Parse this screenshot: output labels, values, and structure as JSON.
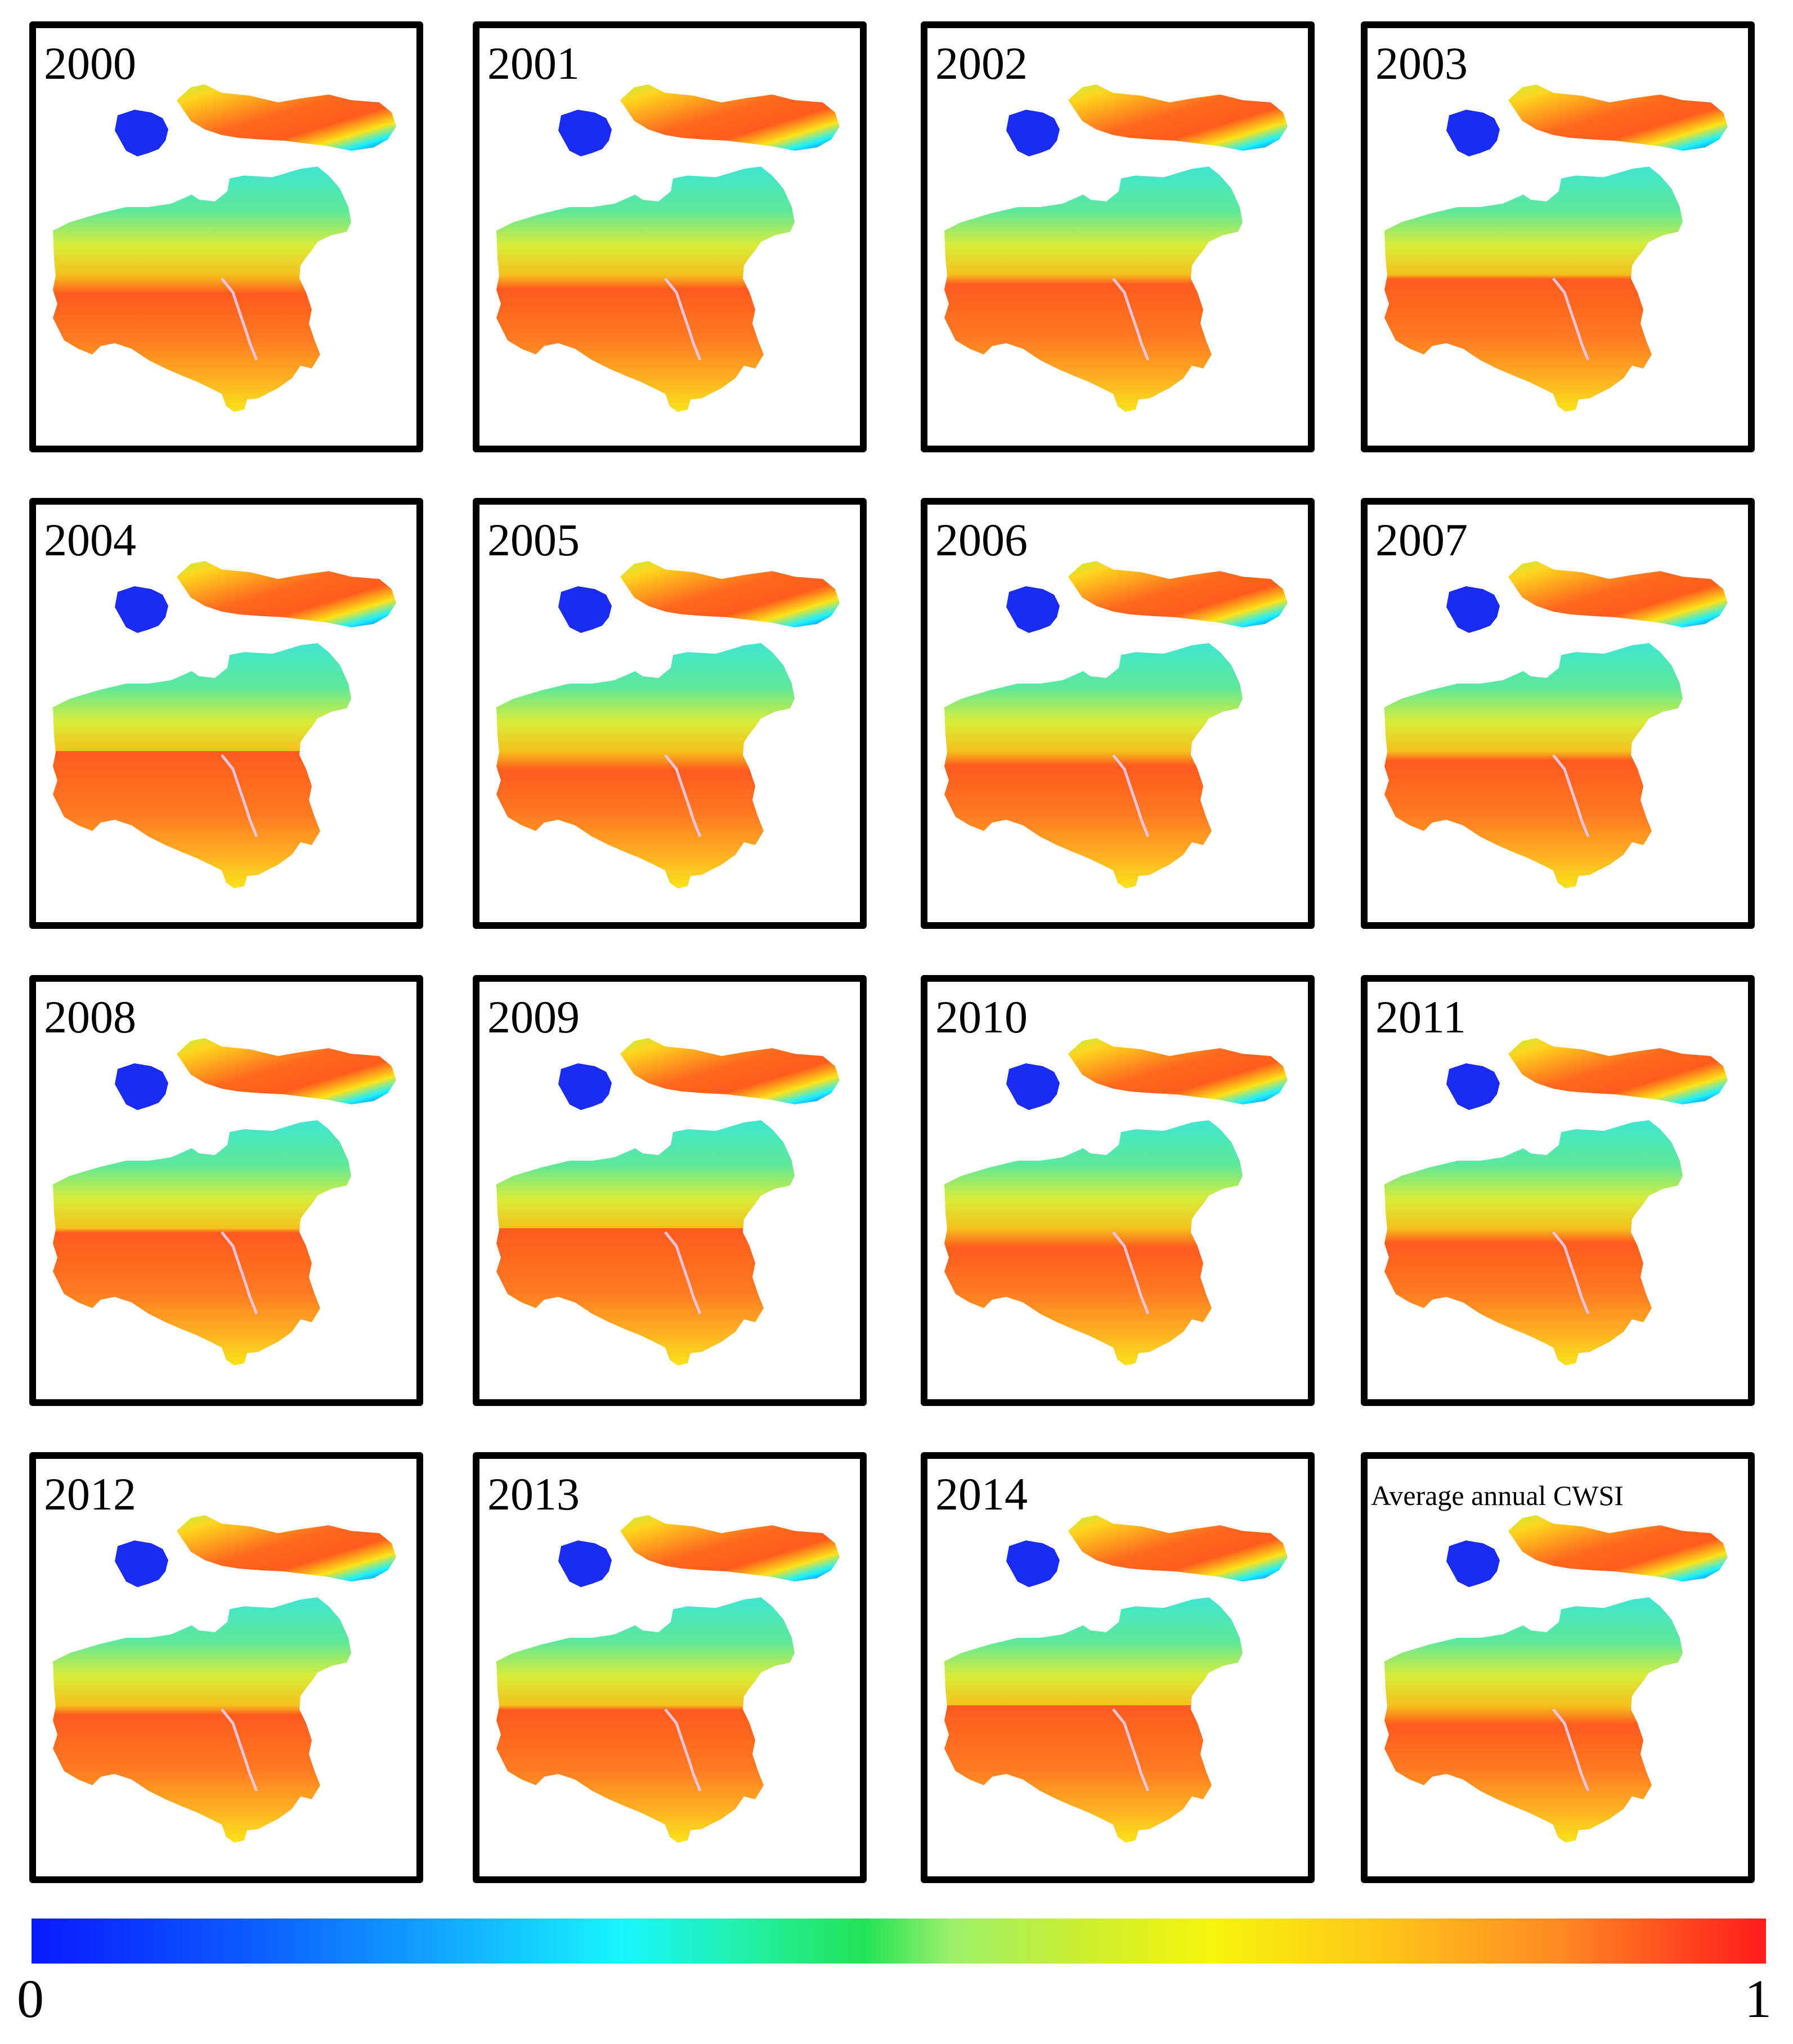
{
  "panels": [
    {
      "label": "2000"
    },
    {
      "label": "2001"
    },
    {
      "label": "2002"
    },
    {
      "label": "2003"
    },
    {
      "label": "2004"
    },
    {
      "label": "2005"
    },
    {
      "label": "2006"
    },
    {
      "label": "2007"
    },
    {
      "label": "2008"
    },
    {
      "label": "2009"
    },
    {
      "label": "2010"
    },
    {
      "label": "2011"
    },
    {
      "label": "2012"
    },
    {
      "label": "2013"
    },
    {
      "label": "2014"
    },
    {
      "label": "Average annual CWSI"
    }
  ],
  "colorbar": {
    "min_label": "0",
    "max_label": "1",
    "palette": [
      "#0a1aff",
      "#12a9ff",
      "#18f6ff",
      "#21e355",
      "#c7ee32",
      "#f6f50c",
      "#ff8a23",
      "#ff1b1b"
    ]
  }
}
